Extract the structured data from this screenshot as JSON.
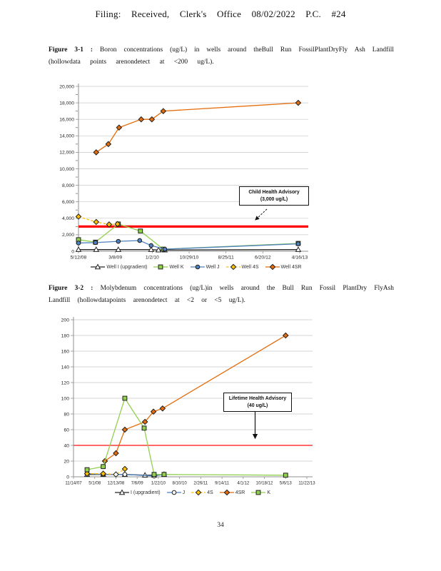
{
  "page": {
    "header": "Filing: Received, Clerk's Office 08/02/2022 P.C. #24",
    "page_number": "34"
  },
  "figures": [
    {
      "label": "Figure 3-1 :",
      "line1": "Boron concentrations (ug/L) in wells around theBull Run FossilPlantDryFly Ash Landfill",
      "line2": "(hollowdata points arenondetect at <200 ug/L)."
    },
    {
      "label": "Figure 3-2 :",
      "line1": "Molybdenum concentrations (ug/L)in wells around the Bull Run Fossil PlantDry FlyAsh",
      "line2": "Landfill (hollowdatapoints arenondetect at <2 or <5 ug/L)."
    }
  ],
  "chart_data": [
    {
      "type": "line",
      "title": "Boron concentrations (ug/L) in wells around the Bull Run Fossil Plant Dry Fly Ash Landfill",
      "y_axis": {
        "min": 0,
        "max": 20000,
        "step": 2000,
        "minor_step": 1000
      },
      "x_ticks": [
        "5/12/08",
        "3/8/09",
        "1/2/10",
        "10/29/10",
        "8/25/11",
        "6/20/12",
        "4/16/13"
      ],
      "advisory": {
        "value": 3000,
        "color": "#fe0000",
        "label_line1": "Child Health Advisory",
        "label_line2": "(3,000 ug/L)"
      },
      "series": [
        {
          "name": "Well I (upgradient)",
          "marker": "triangle",
          "color": "#262626",
          "fill": "#ffffff",
          "points": [
            {
              "x": 0,
              "y": 200,
              "hollow": true
            },
            {
              "x": 0.48,
              "y": 200,
              "hollow": true
            },
            {
              "x": 1.08,
              "y": 200,
              "hollow": true
            },
            {
              "x": 1.97,
              "y": 200,
              "hollow": true
            },
            {
              "x": 2.17,
              "y": 150,
              "hollow": true
            },
            {
              "x": 2.34,
              "y": 150,
              "hollow": true
            },
            {
              "x": 5.96,
              "y": 200,
              "hollow": true
            }
          ]
        },
        {
          "name": "Well K",
          "marker": "square",
          "color": "#92D050",
          "fill": "#92D050",
          "points": [
            {
              "x": 0,
              "y": 1400
            },
            {
              "x": 0.46,
              "y": 1100
            },
            {
              "x": 1.08,
              "y": 3300
            },
            {
              "x": 1.68,
              "y": 2450
            },
            {
              "x": 2.3,
              "y": 250
            },
            {
              "x": 5.96,
              "y": 950
            }
          ]
        },
        {
          "name": "Well J",
          "marker": "circle",
          "color": "#4F81BD",
          "fill": "#4F81BD",
          "points": [
            {
              "x": 0,
              "y": 1000
            },
            {
              "x": 0.46,
              "y": 1050
            },
            {
              "x": 1.08,
              "y": 1200
            },
            {
              "x": 1.66,
              "y": 1300
            },
            {
              "x": 1.97,
              "y": 700
            },
            {
              "x": 2.34,
              "y": 250
            },
            {
              "x": 5.96,
              "y": 900
            }
          ]
        },
        {
          "name": "Well 4S",
          "marker": "diamond",
          "color": "#FFC000",
          "fill": "#FFC000",
          "dash": "3.5,2.5",
          "points": [
            {
              "x": 0,
              "y": 4200
            },
            {
              "x": 0.48,
              "y": 3550
            },
            {
              "x": 0.83,
              "y": 3250
            },
            {
              "x": 1.06,
              "y": 3300
            }
          ]
        },
        {
          "name": "Well 4SR",
          "marker": "diamond",
          "color": "#E46C0A",
          "fill": "#E46C0A",
          "points": [
            {
              "x": 0.48,
              "y": 12000
            },
            {
              "x": 0.81,
              "y": 13000
            },
            {
              "x": 1.1,
              "y": 15000
            },
            {
              "x": 1.7,
              "y": 16000
            },
            {
              "x": 1.99,
              "y": 16000
            },
            {
              "x": 2.3,
              "y": 17000
            },
            {
              "x": 5.96,
              "y": 18000
            }
          ]
        }
      ]
    },
    {
      "type": "line",
      "title": "Molybdenum concentrations (ug/L) in wells around the Bull Run Fossil Plant Dry Fly Ash Landfill",
      "y_axis": {
        "min": 0,
        "max": 200,
        "step": 20
      },
      "x_ticks": [
        "11/14/07",
        "5/1/08",
        "12/13/08",
        "7/6/09",
        "1/22/10",
        "8/10/10",
        "2/26/11",
        "9/14/11",
        "4/1/12",
        "10/18/12",
        "5/6/13",
        "11/22/13"
      ],
      "advisory": {
        "value": 40,
        "color": "#ff5252",
        "label_line1": "Lifetime Health Advisory",
        "label_line2": "(40 ug/L)"
      },
      "series": [
        {
          "name": "I (upgradient)",
          "marker": "triangle",
          "color": "#262626",
          "fill": "#ffffff",
          "points": [
            {
              "x": 0.64,
              "y": 3,
              "hollow": true
            },
            {
              "x": 1.4,
              "y": 3,
              "hollow": true
            },
            {
              "x": 2.42,
              "y": 3,
              "hollow": true
            },
            {
              "x": 3.37,
              "y": 2,
              "hollow": true
            },
            {
              "x": 3.8,
              "y": 2,
              "hollow": true
            },
            {
              "x": 4.27,
              "y": 3,
              "hollow": true
            }
          ]
        },
        {
          "name": "J",
          "marker": "circle",
          "color": "#4F81BD",
          "fill": "#ffffff",
          "points": [
            {
              "x": 0.64,
              "y": 4,
              "hollow": true
            },
            {
              "x": 1.4,
              "y": 3,
              "hollow": true
            },
            {
              "x": 2.42,
              "y": 3,
              "hollow": true
            },
            {
              "x": 3.8,
              "y": 1,
              "hollow": true
            },
            {
              "x": 4.27,
              "y": 3,
              "hollow": true
            }
          ]
        },
        {
          "name": "4S",
          "marker": "diamond",
          "color": "#FFC000",
          "fill": "#FFC000",
          "dash": "3.5,2.5",
          "points": [
            {
              "x": 0.64,
              "y": 4
            },
            {
              "x": 1.4,
              "y": 4
            },
            {
              "x": 2,
              "y": 3,
              "hollow": true
            },
            {
              "x": 2.42,
              "y": 10
            }
          ]
        },
        {
          "name": "4SR",
          "marker": "diamond",
          "color": "#E46C0A",
          "fill": "#E46C0A",
          "points": [
            {
              "x": 1.48,
              "y": 20
            },
            {
              "x": 2,
              "y": 30
            },
            {
              "x": 2.42,
              "y": 60
            },
            {
              "x": 3.37,
              "y": 70
            },
            {
              "x": 3.77,
              "y": 83
            },
            {
              "x": 4.2,
              "y": 87
            },
            {
              "x": 10,
              "y": 180
            }
          ]
        },
        {
          "name": "K",
          "marker": "square",
          "color": "#92D050",
          "fill": "#92D050",
          "points": [
            {
              "x": 0.64,
              "y": 9
            },
            {
              "x": 1.4,
              "y": 13
            },
            {
              "x": 2.42,
              "y": 100
            },
            {
              "x": 3.33,
              "y": 62
            },
            {
              "x": 3.8,
              "y": 3
            },
            {
              "x": 4.27,
              "y": 3
            },
            {
              "x": 10,
              "y": 2
            }
          ]
        }
      ]
    }
  ]
}
